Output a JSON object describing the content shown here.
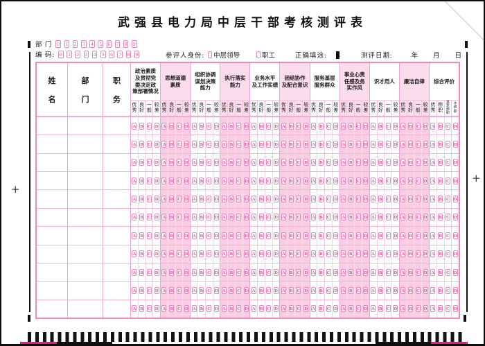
{
  "title": "武强县电力局中层干部考核测评表",
  "header": {
    "dept_label": "部 门",
    "code_label": "编 码:",
    "digits": [
      "0",
      "1",
      "2",
      "3",
      "4",
      "5",
      "6",
      "7",
      "8",
      "9"
    ],
    "identity_label": "参评人身份:",
    "identity_options": [
      {
        "label": "中层领导"
      },
      {
        "label": "职工"
      }
    ],
    "fill_example_label": "正确填涂:",
    "date_label": "测评日期:",
    "date_units": [
      "年",
      "月",
      "日"
    ]
  },
  "table": {
    "name_columns": [
      "姓名",
      "部门",
      "职务"
    ],
    "rating_labels": [
      "优秀",
      "良好",
      "一般",
      "较差"
    ],
    "final_rating_labels": [
      "优秀",
      "称职",
      "基本称职",
      "不称职"
    ],
    "bubble_letters": [
      "A",
      "B",
      "C",
      "D"
    ],
    "row_count": 11,
    "groups": [
      {
        "title": "政治素质及贯彻党委决定政策部署情况",
        "lines": [
          "政治素质",
          "及贯彻党",
          "委决定政",
          "策部署情况"
        ],
        "shaded": false,
        "final": false
      },
      {
        "title": "思想道德素质",
        "lines": [
          "思想道德",
          "素质"
        ],
        "shaded": true,
        "final": false
      },
      {
        "title": "组织协调谋划决策能力",
        "lines": [
          "组织协调",
          "谋划决策",
          "能力"
        ],
        "shaded": false,
        "final": false
      },
      {
        "title": "执行落实能力",
        "lines": [
          "执行落实",
          "能力"
        ],
        "shaded": true,
        "final": false
      },
      {
        "title": "业务水平及工作实绩",
        "lines": [
          "业务水平",
          "及工作实绩"
        ],
        "shaded": false,
        "final": false
      },
      {
        "title": "团结协作及配合意识",
        "lines": [
          "团结协作",
          "及配合意识"
        ],
        "shaded": true,
        "final": false
      },
      {
        "title": "服务基层服务群众",
        "lines": [
          "服务基层",
          "服务群众"
        ],
        "shaded": false,
        "final": false
      },
      {
        "title": "事业心责任感及务实作风",
        "lines": [
          "事业心责",
          "任感及务",
          "实作风"
        ],
        "shaded": true,
        "final": false
      },
      {
        "title": "识才用人",
        "lines": [
          "识才用人"
        ],
        "shaded": false,
        "final": false
      },
      {
        "title": "廉洁自律",
        "lines": [
          "廉洁自律"
        ],
        "shaded": true,
        "final": false
      },
      {
        "title": "综合评价",
        "lines": [
          "综合评价"
        ],
        "shaded": false,
        "final": true
      }
    ]
  },
  "colors": {
    "bubble_pink": "#dd4f96",
    "border_pink": "#ee8ab8",
    "grid_pink": "#f0a4c9",
    "shade_pink": "#fbdcec",
    "mark_black": "#101010",
    "magenta": "#e81b7c"
  }
}
